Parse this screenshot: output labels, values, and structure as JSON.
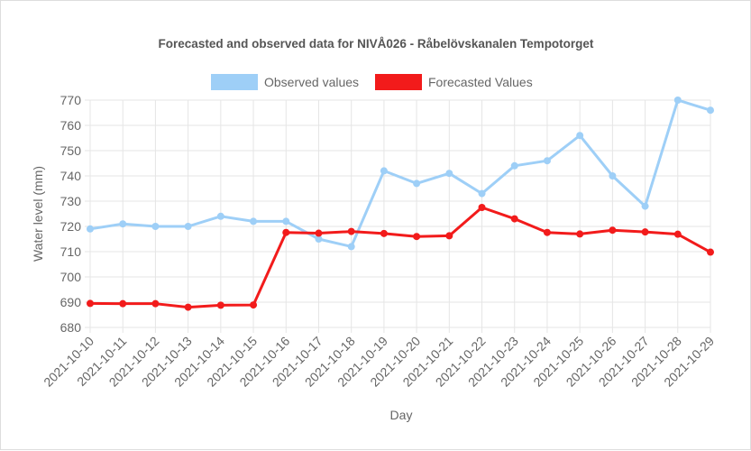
{
  "chart_data": {
    "type": "line",
    "title": "Forecasted and observed data for NIVÅ026 - Råbelövskanalen Tempotorget",
    "xlabel": "Day",
    "ylabel": "Water level (mm)",
    "ylim": [
      680,
      770
    ],
    "yticks": [
      680,
      690,
      700,
      710,
      720,
      730,
      740,
      750,
      760,
      770
    ],
    "grid": true,
    "legend_position": "top",
    "categories": [
      "2021-10-10",
      "2021-10-11",
      "2021-10-12",
      "2021-10-13",
      "2021-10-14",
      "2021-10-15",
      "2021-10-16",
      "2021-10-17",
      "2021-10-18",
      "2021-10-19",
      "2021-10-20",
      "2021-10-21",
      "2021-10-22",
      "2021-10-23",
      "2021-10-24",
      "2021-10-25",
      "2021-10-26",
      "2021-10-27",
      "2021-10-28",
      "2021-10-29"
    ],
    "series": [
      {
        "name": "Observed values",
        "color": "#9ecff7",
        "values": [
          719,
          721,
          720,
          720,
          724,
          722,
          722,
          715,
          712,
          742,
          737,
          741,
          733,
          744,
          746,
          756,
          740,
          728,
          770,
          766
        ]
      },
      {
        "name": "Forecasted Values",
        "color": "#f21b1b",
        "values": [
          689.5,
          689.4,
          689.4,
          688,
          688.8,
          688.9,
          717.6,
          717.3,
          718,
          717.2,
          716,
          716.3,
          727.5,
          723,
          717.6,
          717,
          718.5,
          717.8,
          716.9,
          709.8
        ]
      }
    ]
  }
}
